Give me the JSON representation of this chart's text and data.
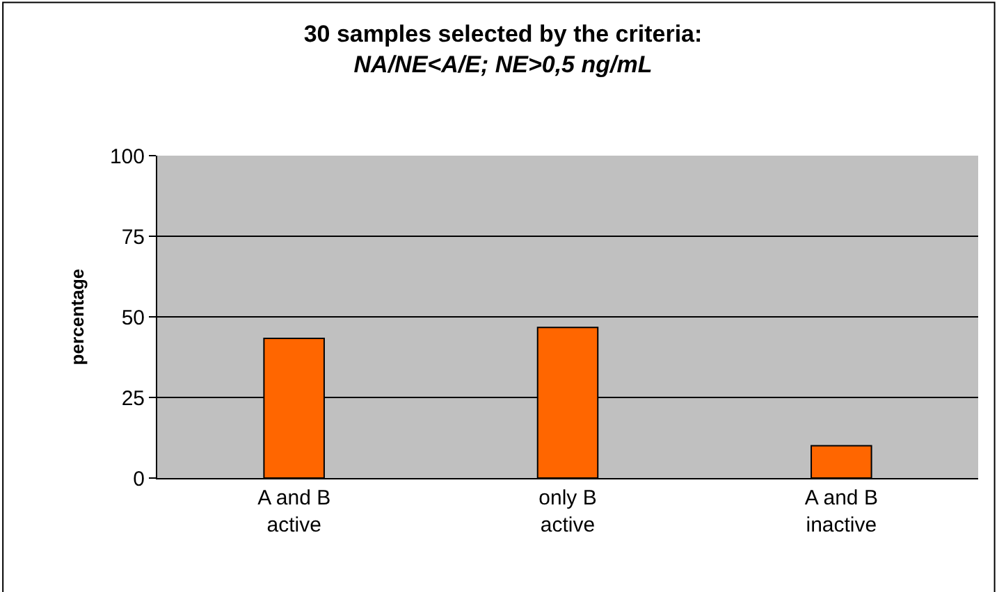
{
  "chart_data": {
    "type": "bar",
    "title": "30 samples selected by the criteria:",
    "subtitle": "NA/NE<A/E; NE>0,5 ng/mL",
    "ylabel": "percentage",
    "categories": [
      "A and B\nactive",
      "only B\nactive",
      "A and B\ninactive"
    ],
    "values": [
      43.3,
      46.7,
      10
    ],
    "color": "#ff6600",
    "ylim": [
      0,
      100
    ],
    "yticks": [
      0,
      25,
      50,
      75,
      100
    ],
    "grid": "y"
  }
}
